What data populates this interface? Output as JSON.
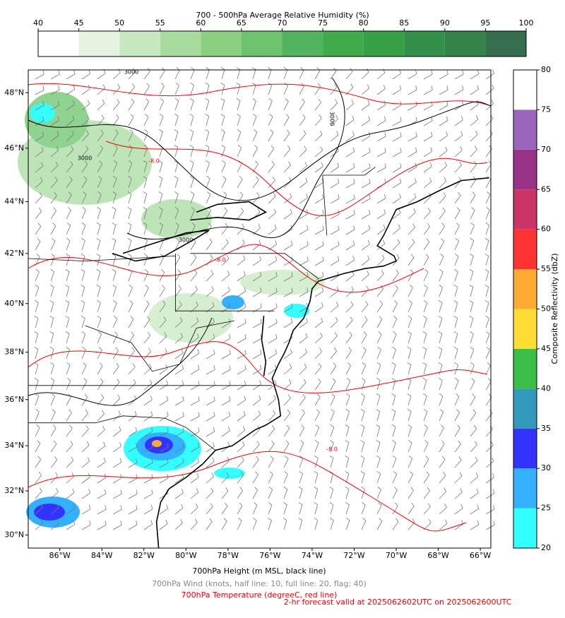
{
  "top_colorbar": {
    "title": "700 - 500hPa Average Relative Humidity (%)",
    "ticks": [
      40,
      45,
      50,
      55,
      60,
      65,
      70,
      75,
      80,
      85,
      90,
      95,
      100
    ],
    "colors": [
      "#ffffff",
      "#e5f3e0",
      "#c7e9c0",
      "#a8dc9f",
      "#8ad07f",
      "#6cc36b",
      "#52b45e",
      "#41ab4c",
      "#38a047",
      "#33904a",
      "#34844a",
      "#356e4f"
    ]
  },
  "right_colorbar": {
    "label": "Composite Reflectivity (dbZ)",
    "ticks": [
      20,
      25,
      30,
      35,
      40,
      45,
      50,
      55,
      60,
      65,
      70,
      75,
      80
    ],
    "colors": [
      "#33ffff",
      "#33b0ff",
      "#3333ff",
      "#3399bb",
      "#3bbe48",
      "#ffdd33",
      "#ffaa33",
      "#ff3333",
      "#cc3366",
      "#993388",
      "#9966bb",
      "#ffffff"
    ]
  },
  "map": {
    "xlim": [
      -87.5,
      -65.5
    ],
    "ylim": [
      29.4,
      48.8
    ],
    "xticks": [
      {
        "value": -86,
        "label": "86°W"
      },
      {
        "value": -84,
        "label": "84°W"
      },
      {
        "value": -82,
        "label": "82°W"
      },
      {
        "value": -80,
        "label": "80°W"
      },
      {
        "value": -78,
        "label": "78°W"
      },
      {
        "value": -76,
        "label": "76°W"
      },
      {
        "value": -74,
        "label": "74°W"
      },
      {
        "value": -72,
        "label": "72°W"
      },
      {
        "value": -70,
        "label": "70°W"
      },
      {
        "value": -68,
        "label": "68°W"
      },
      {
        "value": -66,
        "label": "66°W"
      }
    ],
    "yticks": [
      {
        "value": 30,
        "label": "30°N"
      },
      {
        "value": 32,
        "label": "32°N"
      },
      {
        "value": 34,
        "label": "34°N"
      },
      {
        "value": 36,
        "label": "36°N"
      },
      {
        "value": 38,
        "label": "38°N"
      },
      {
        "value": 40,
        "label": "40°N"
      },
      {
        "value": 42,
        "label": "42°N"
      },
      {
        "value": 44,
        "label": "44°N"
      },
      {
        "value": 46,
        "label": "46°N"
      },
      {
        "value": 48,
        "label": "48°N"
      }
    ],
    "contour_labels": [
      "3000",
      "-8.0",
      "3000",
      "-8.0",
      "3000",
      "-8.0",
      "3000"
    ]
  },
  "captions": [
    "700hPa Height (m MSL, black line)",
    "700hPa Wind (knots, half line: 10, full line: 20, flag: 40)",
    "700hPa Temperature (degreeC, red line)",
    "2-hr forecast valid at 2025062602UTC on 2025062600UTC"
  ]
}
